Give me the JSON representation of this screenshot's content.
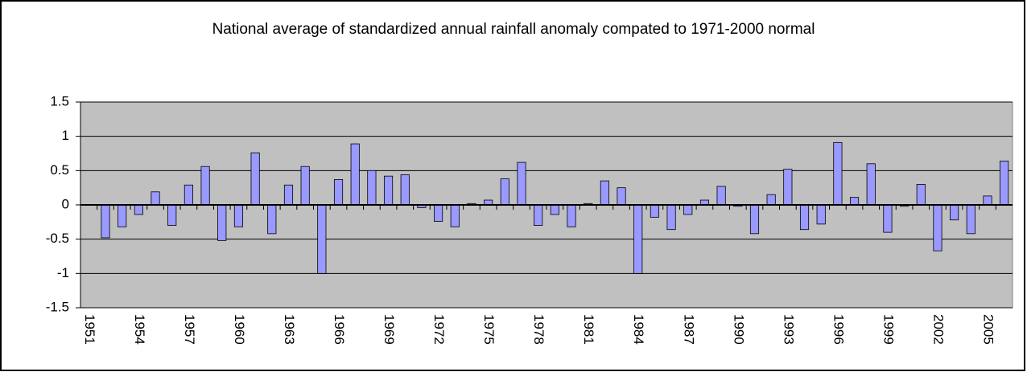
{
  "chart_data": {
    "type": "bar",
    "title": "National average of standardized annual rainfall anomaly compated to 1971-2000 normal",
    "categories": [
      "1951",
      null,
      null,
      "1954",
      null,
      null,
      "1957",
      null,
      null,
      "1960",
      null,
      null,
      "1963",
      null,
      null,
      "1966",
      null,
      null,
      "1969",
      null,
      null,
      "1972",
      null,
      null,
      "1975",
      null,
      null,
      "1978",
      null,
      null,
      "1981",
      null,
      null,
      "1984",
      null,
      null,
      "1987",
      null,
      null,
      "1990",
      null,
      null,
      "1993",
      null,
      null,
      "1996",
      null,
      null,
      "1999",
      null,
      null,
      "2002",
      null,
      null,
      "2005",
      null
    ],
    "values": [
      null,
      -0.48,
      -0.32,
      -0.14,
      0.19,
      -0.3,
      0.29,
      0.56,
      -0.52,
      -0.32,
      0.76,
      -0.42,
      0.29,
      0.56,
      -1.0,
      0.37,
      0.89,
      0.5,
      0.42,
      0.44,
      -0.04,
      -0.24,
      -0.32,
      0.02,
      0.07,
      0.38,
      0.62,
      -0.3,
      -0.14,
      -0.32,
      0.02,
      0.35,
      0.25,
      -1.0,
      -0.18,
      -0.36,
      -0.14,
      0.07,
      0.27,
      -0.02,
      -0.42,
      0.15,
      0.52,
      -0.36,
      -0.28,
      0.91,
      0.11,
      0.6,
      -0.4,
      -0.02,
      0.3,
      -0.67,
      -0.22,
      -0.42,
      0.13,
      0.64
    ],
    "color": "#9999ff",
    "ylim": [
      -1.5,
      1.5
    ],
    "yticks": [
      -1.5,
      -1,
      -0.5,
      0,
      0.5,
      1,
      1.5
    ],
    "grid": true
  }
}
